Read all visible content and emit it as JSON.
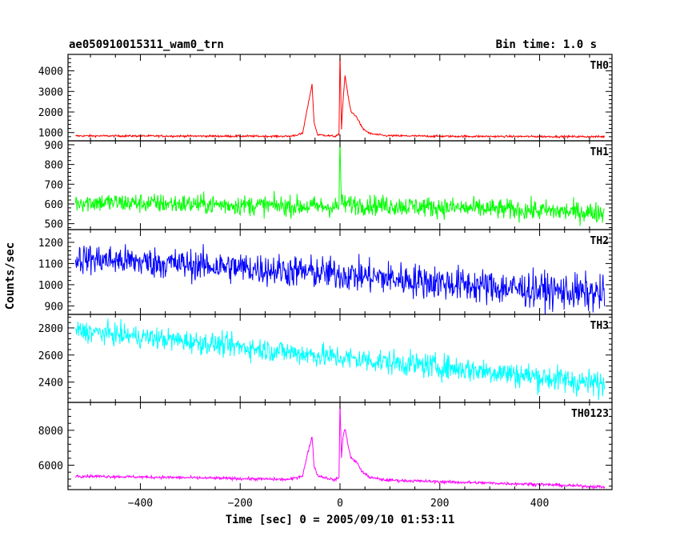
{
  "chart_data": {
    "type": "line",
    "title": "ae050910015311_wam0_trn",
    "bin_time": "Bin time: 1.0 s",
    "xlabel": "Time [sec] 0 = 2005/09/10 01:53:11",
    "ylabel": "Counts/sec",
    "xlim": [
      -545,
      545
    ],
    "x_ticks": [
      -400,
      -200,
      0,
      200,
      400
    ],
    "x_tick_labels": [
      "−400",
      "−200",
      "0",
      "200",
      "400"
    ],
    "x_range": [
      -530,
      530
    ],
    "grid": false,
    "panels": [
      {
        "name": "TH0",
        "color": "#ff0000",
        "ylim": [
          600,
          4800
        ],
        "yticks": [
          1000,
          2000,
          3000,
          4000
        ],
        "series_points": [
          [
            -530,
            840
          ],
          [
            -300,
            830
          ],
          [
            -100,
            820
          ],
          [
            -75,
            950
          ],
          [
            -62,
            2600
          ],
          [
            -56,
            3350
          ],
          [
            -52,
            1500
          ],
          [
            -45,
            900
          ],
          [
            -10,
            820
          ],
          [
            -2,
            900
          ],
          [
            0,
            4800
          ],
          [
            3,
            1200
          ],
          [
            6,
            2500
          ],
          [
            10,
            3800
          ],
          [
            16,
            2800
          ],
          [
            22,
            2000
          ],
          [
            28,
            1900
          ],
          [
            35,
            1700
          ],
          [
            45,
            1200
          ],
          [
            60,
            950
          ],
          [
            90,
            850
          ],
          [
            200,
            820
          ],
          [
            530,
            800
          ]
        ],
        "noise": 40
      },
      {
        "name": "TH1",
        "color": "#00ff00",
        "ylim": [
          470,
          920
        ],
        "yticks": [
          500,
          600,
          700,
          800,
          900
        ],
        "series_points": [
          [
            -530,
            610
          ],
          [
            -2,
            585
          ],
          [
            0,
            920
          ],
          [
            3,
            600
          ],
          [
            530,
            555
          ]
        ],
        "noise": 42
      },
      {
        "name": "TH2",
        "color": "#0000ff",
        "ylim": [
          860,
          1260
        ],
        "yticks": [
          900,
          1000,
          1100,
          1200
        ],
        "series_points": [
          [
            -530,
            1125
          ],
          [
            -300,
            1095
          ],
          [
            0,
            1050
          ],
          [
            300,
            990
          ],
          [
            530,
            955
          ]
        ],
        "noise": 60
      },
      {
        "name": "TH3",
        "color": "#00ffff",
        "ylim": [
          2250,
          2900
        ],
        "yticks": [
          2400,
          2600,
          2800
        ],
        "series_points": [
          [
            -530,
            2780
          ],
          [
            -300,
            2700
          ],
          [
            0,
            2580
          ],
          [
            300,
            2480
          ],
          [
            530,
            2380
          ]
        ],
        "noise": 65
      },
      {
        "name": "TH0123",
        "color": "#ff00ff",
        "ylim": [
          4600,
          9600
        ],
        "yticks": [
          6000,
          8000
        ],
        "series_points": [
          [
            -530,
            5380
          ],
          [
            -300,
            5280
          ],
          [
            -100,
            5180
          ],
          [
            -75,
            5400
          ],
          [
            -62,
            7000
          ],
          [
            -56,
            7650
          ],
          [
            -52,
            6000
          ],
          [
            -45,
            5400
          ],
          [
            -10,
            5150
          ],
          [
            -2,
            5300
          ],
          [
            0,
            9500
          ],
          [
            3,
            6500
          ],
          [
            6,
            7600
          ],
          [
            10,
            8100
          ],
          [
            16,
            7200
          ],
          [
            22,
            6400
          ],
          [
            28,
            6300
          ],
          [
            35,
            6100
          ],
          [
            45,
            5600
          ],
          [
            60,
            5300
          ],
          [
            90,
            5150
          ],
          [
            200,
            5050
          ],
          [
            400,
            4900
          ],
          [
            530,
            4750
          ]
        ],
        "noise": 70
      }
    ]
  }
}
